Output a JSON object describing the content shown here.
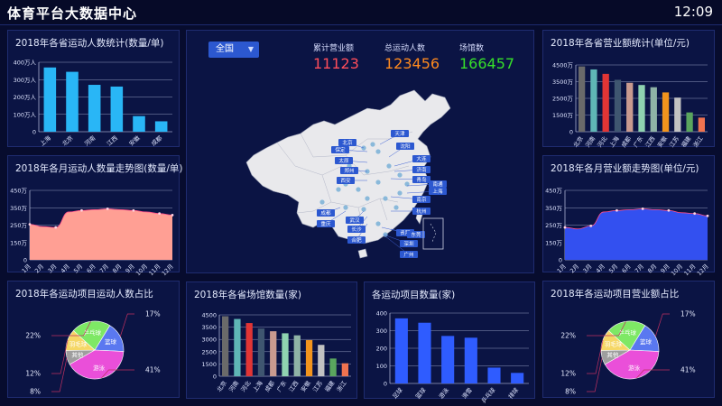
{
  "header": {
    "title": "体育平台大数据中心",
    "time": "12:09"
  },
  "kpis": [
    {
      "label": "累计营业额",
      "value": "11123",
      "color": "#ff4d5a"
    },
    {
      "label": "总运动人数",
      "value": "123456",
      "color": "#ff8a1e"
    },
    {
      "label": "场馆数",
      "value": "166457",
      "color": "#36e02a"
    }
  ],
  "map": {
    "region_select": "全国",
    "city_labels": [
      "北京",
      "天津",
      "保定",
      "沈阳",
      "太原",
      "郑州",
      "西安",
      "大连",
      "济南",
      "青岛",
      "南京",
      "上海",
      "南通",
      "成都",
      "重庆",
      "武汉",
      "长沙",
      "合肥",
      "杭州",
      "贵阳",
      "深圳",
      "广州",
      "东莞"
    ]
  },
  "chart_data": [
    {
      "id": "province_users",
      "type": "bar",
      "title": "2018年各省运动人数统计(数量/单)",
      "categories": [
        "上海",
        "北京",
        "河南",
        "江西",
        "安徽",
        "成都"
      ],
      "values": [
        370,
        345,
        270,
        260,
        90,
        60
      ],
      "yticks": [
        "400万人",
        "300万人",
        "200万人",
        "100万人",
        "0"
      ],
      "ylim": [
        0,
        400
      ],
      "color": "#29b6f6"
    },
    {
      "id": "monthly_users",
      "type": "area",
      "title": "2018年各月运动人数量走势图(数量/单)",
      "categories": [
        "1月",
        "2月",
        "3月",
        "4月",
        "5月",
        "6月",
        "7月",
        "8月",
        "9月",
        "10月",
        "11月",
        "12月"
      ],
      "values": [
        230,
        215,
        210,
        310,
        320,
        325,
        330,
        325,
        320,
        310,
        300,
        290
      ],
      "yticks": [
        "450万",
        "350万",
        "250万",
        "150万",
        "0"
      ],
      "ylim": [
        0,
        450
      ],
      "color": "#ff9f94"
    },
    {
      "id": "sport_users_share",
      "type": "pie",
      "title": "2018年各运动项目运动人数占比",
      "slices": [
        {
          "name": "篮球",
          "value": 17,
          "color": "#5a78f0"
        },
        {
          "name": "游泳",
          "value": 41,
          "color": "#ea4fd9"
        },
        {
          "name": "其他",
          "value": 8,
          "color": "#9e9e9e"
        },
        {
          "name": "羽毛球",
          "value": 12,
          "color": "#f5d766"
        },
        {
          "name": "乒乓球",
          "value": 22,
          "color": "#7ee865"
        }
      ],
      "percent_labels": [
        "17%",
        "41%",
        "8%",
        "12%",
        "22%"
      ]
    },
    {
      "id": "province_venues",
      "type": "bar",
      "title": "2018年各省场馆数量(家)",
      "categories": [
        "北京",
        "河南",
        "河北",
        "上海",
        "成都",
        "广东",
        "江西",
        "安徽",
        "江苏",
        "福建",
        "浙江"
      ],
      "values": [
        4400,
        4200,
        3900,
        3500,
        3300,
        3150,
        3000,
        2650,
        2300,
        1300,
        950
      ],
      "yticks": [
        "4500",
        "3500",
        "3000",
        "2500",
        "1500",
        "0"
      ],
      "ylim": [
        0,
        4500
      ],
      "colors": [
        "#6a6a6a",
        "#5fb6b6",
        "#e13535",
        "#3f5670",
        "#c99a8f",
        "#8fd3b0",
        "#8fb3a6",
        "#f2941d",
        "#c2c2c2",
        "#5aa55e",
        "#f07350"
      ]
    },
    {
      "id": "sport_venues",
      "type": "bar",
      "title": "各运动项目数量(家)",
      "categories": [
        "足球",
        "篮球",
        "游泳",
        "滑雪",
        "乒乓球",
        "排球"
      ],
      "values": [
        370,
        345,
        270,
        260,
        90,
        60
      ],
      "yticks": [
        "400",
        "300",
        "200",
        "100",
        "0"
      ],
      "ylim": [
        0,
        400
      ],
      "color": "#2f5cff"
    },
    {
      "id": "province_revenue",
      "type": "bar",
      "title": "2018年各省营业额统计(单位/元)",
      "categories": [
        "北京",
        "河南",
        "河北",
        "上海",
        "成都",
        "广东",
        "江西",
        "安徽",
        "江苏",
        "福建",
        "浙江"
      ],
      "values": [
        4400,
        4200,
        3900,
        3500,
        3300,
        3150,
        3000,
        2650,
        2300,
        1300,
        950
      ],
      "yticks": [
        "4500万",
        "3500万",
        "2500万",
        "1500万",
        "0"
      ],
      "ylim": [
        0,
        4500
      ],
      "colors": [
        "#6a6a6a",
        "#5fb6b6",
        "#e13535",
        "#3f5670",
        "#c99a8f",
        "#8fd3b0",
        "#8fb3a6",
        "#f2941d",
        "#c2c2c2",
        "#5aa55e",
        "#f07350"
      ]
    },
    {
      "id": "monthly_revenue",
      "type": "area",
      "title": "2018年各月营业额走势图(单位/元)",
      "categories": [
        "1月",
        "2月",
        "3月",
        "4月",
        "5月",
        "6月",
        "7月",
        "8月",
        "9月",
        "10月",
        "11月",
        "12月"
      ],
      "values": [
        210,
        200,
        220,
        310,
        320,
        325,
        330,
        325,
        320,
        305,
        300,
        285
      ],
      "yticks": [
        "450万",
        "350万",
        "250万",
        "150万",
        "0"
      ],
      "ylim": [
        0,
        450
      ],
      "color": "#3350f0"
    },
    {
      "id": "sport_revenue_share",
      "type": "pie",
      "title": "2018年各运动项目营业额占比",
      "slices": [
        {
          "name": "篮球",
          "value": 17,
          "color": "#5a78f0"
        },
        {
          "name": "游泳",
          "value": 41,
          "color": "#ea4fd9"
        },
        {
          "name": "其他",
          "value": 8,
          "color": "#9e9e9e"
        },
        {
          "name": "羽毛球",
          "value": 12,
          "color": "#f5d766"
        },
        {
          "name": "乒乓球",
          "value": 22,
          "color": "#7ee865"
        }
      ],
      "percent_labels": [
        "17%",
        "41%",
        "8%",
        "12%",
        "22%"
      ]
    }
  ]
}
